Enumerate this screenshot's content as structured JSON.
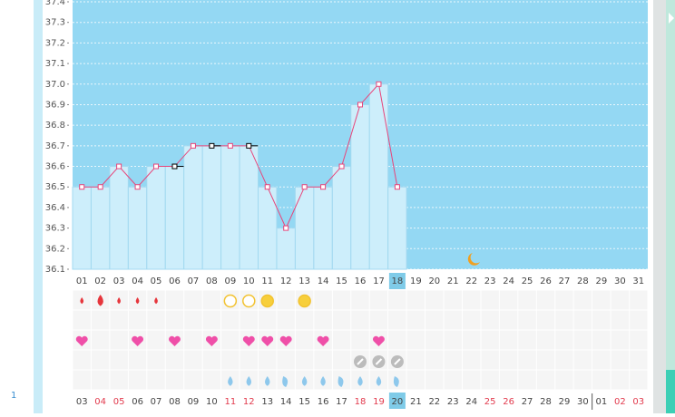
{
  "side_label": "1",
  "chart_data": {
    "type": "step-line",
    "categories": [
      "01",
      "02",
      "03",
      "04",
      "05",
      "06",
      "07",
      "08",
      "09",
      "10",
      "11",
      "12",
      "13",
      "14",
      "15",
      "16",
      "17",
      "18",
      "19",
      "20",
      "21",
      "22",
      "23",
      "24",
      "25",
      "26",
      "27",
      "28",
      "29",
      "30",
      "31"
    ],
    "series": [
      {
        "name": null,
        "color": "#e8457a",
        "values": [
          36.5,
          36.5,
          36.6,
          36.5,
          36.6,
          36.6,
          36.7,
          36.7,
          36.7,
          36.7,
          36.5,
          36.3,
          36.5,
          36.5,
          36.6,
          36.9,
          37.0,
          36.5,
          null,
          null,
          null,
          null,
          null,
          null,
          null,
          null,
          null,
          null,
          null,
          null,
          null
        ]
      }
    ],
    "marker_colors": [
      "#e8457a",
      "#e8457a",
      "#e8457a",
      "#e8457a",
      "#e8457a",
      "#000000",
      "#e8457a",
      "#000000",
      "#e8457a",
      "#000000",
      "#e8457a",
      "#e8457a",
      "#e8457a",
      "#e8457a",
      "#e8457a",
      "#e8457a",
      "#e8457a",
      "#e8457a",
      null,
      null,
      null,
      null,
      null,
      null,
      null,
      null,
      null,
      null,
      null,
      null,
      null
    ],
    "ylim": [
      36.1,
      37.4
    ],
    "yticks": [
      36.1,
      36.2,
      36.3,
      36.4,
      36.5,
      36.6,
      36.7,
      36.8,
      36.9,
      {
        "value": 37,
        "label": "37.0"
      },
      37.1,
      37.2,
      37.3,
      37.4
    ],
    "grid": true,
    "selected_index": 17
  },
  "bottom_dates": {
    "labels": [
      "03",
      "04",
      "05",
      "06",
      "07",
      "08",
      "09",
      "10",
      "11",
      "12",
      "13",
      "14",
      "15",
      "16",
      "17",
      "18",
      "19",
      "20",
      "21",
      "22",
      "23",
      "24",
      "25",
      "26",
      "27",
      "28",
      "29",
      "30",
      "01",
      "02",
      "03"
    ],
    "red": [
      false,
      true,
      true,
      false,
      false,
      false,
      false,
      false,
      true,
      true,
      false,
      false,
      false,
      false,
      false,
      true,
      true,
      false,
      false,
      false,
      false,
      false,
      true,
      true,
      false,
      false,
      false,
      false,
      false,
      true,
      true
    ],
    "selected_index": 17
  }
}
